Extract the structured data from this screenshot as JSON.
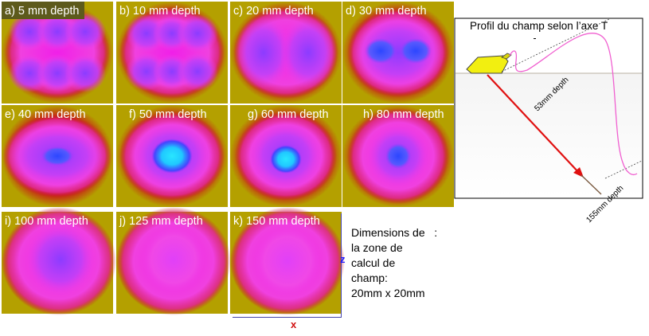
{
  "tiles": [
    {
      "label": "a) 5 mm depth",
      "pattern": "6-lobes"
    },
    {
      "label": "b) 10 mm depth",
      "pattern": "6-lobes-soft"
    },
    {
      "label": "c) 20 mm depth",
      "pattern": "butterfly"
    },
    {
      "label": "d) 30 mm depth",
      "pattern": "double-lobe"
    },
    {
      "label": "e) 40 mm depth",
      "pattern": "diamond-wide"
    },
    {
      "label": "f) 50 mm depth",
      "pattern": "diamond-bright"
    },
    {
      "label": "g) 60 mm depth",
      "pattern": "diamond-mid"
    },
    {
      "label": "h) 80 mm depth",
      "pattern": "round"
    },
    {
      "label": "i) 100 mm depth",
      "pattern": "soft-violet"
    },
    {
      "label": "j) 125 mm depth",
      "pattern": "soft-pink"
    },
    {
      "label": "k) 150 mm depth",
      "pattern": "soft-pale"
    }
  ],
  "dimensions": {
    "lines": [
      "Dimensions de   :",
      "la zone de",
      "calcul de",
      "champ:",
      "20mm x 20mm"
    ]
  },
  "axes": {
    "z": "z",
    "x": "x"
  },
  "profile": {
    "title": "Profil du champ selon l’axe T",
    "label_53": "53mm depth",
    "label_155": "155mm depth"
  },
  "colors": {
    "red": "#c81a1a",
    "magenta": "#f020e8",
    "violet": "#8c3cff",
    "blue": "#2c46ff",
    "cyan": "#28e6ff",
    "olive": "#b4a000"
  }
}
